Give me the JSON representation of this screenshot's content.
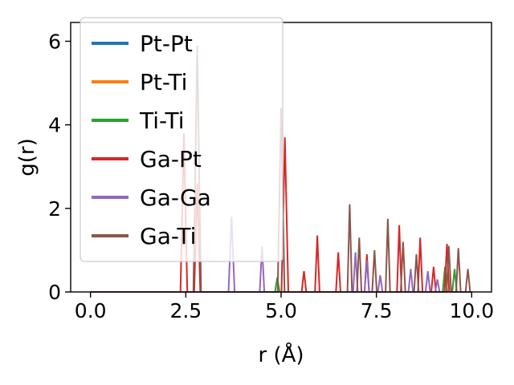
{
  "figure": {
    "background": "#ffffff",
    "axes_edge_color": "#000000",
    "legend_edge_color": "#cccccc",
    "legend_background": "rgba(255,255,255,0.8)"
  },
  "chart_data": {
    "type": "line",
    "title": "",
    "xlabel": "r (Å)",
    "ylabel": "g(r)",
    "xlim": [
      -0.52,
      10.52
    ],
    "ylim": [
      0,
      6.45
    ],
    "x_data_range": [
      0,
      10
    ],
    "xticks": [
      0.0,
      2.5,
      5.0,
      7.5,
      10.0
    ],
    "xtick_labels": [
      "0.0",
      "2.5",
      "5.0",
      "7.5",
      "10.0"
    ],
    "yticks": [
      0,
      2,
      4,
      6
    ],
    "ytick_labels": [
      "0",
      "2",
      "4",
      "6"
    ],
    "grid": false,
    "legend_position": "upper left",
    "series": [
      {
        "name": "Pt-Pt",
        "color": "#1f77b4",
        "peaks": []
      },
      {
        "name": "Pt-Ti",
        "color": "#ff7f0e",
        "peaks": []
      },
      {
        "name": "Ti-Ti",
        "color": "#2ca02c",
        "peaks": [
          [
            4.9,
            0.35
          ],
          [
            9.3,
            0.6
          ],
          [
            9.55,
            0.55
          ]
        ]
      },
      {
        "name": "Ga-Pt",
        "color": "#d62728",
        "peaks": [
          [
            2.45,
            3.8,
            0.09
          ],
          [
            2.8,
            2.6,
            0.08
          ],
          [
            5.1,
            3.7,
            0.09
          ],
          [
            5.6,
            0.5
          ],
          [
            5.95,
            1.35
          ],
          [
            6.5,
            0.95
          ],
          [
            7.25,
            0.9
          ],
          [
            8.1,
            1.6
          ],
          [
            8.65,
            1.3
          ],
          [
            9.0,
            0.6
          ],
          [
            9.35,
            1.15
          ]
        ]
      },
      {
        "name": "Ga-Ga",
        "color": "#9467bd",
        "peaks": [
          [
            3.7,
            1.8,
            0.08
          ],
          [
            4.5,
            1.1
          ],
          [
            6.95,
            0.95
          ],
          [
            7.25,
            0.75
          ],
          [
            7.6,
            0.4
          ],
          [
            8.4,
            0.55
          ],
          [
            8.85,
            0.5
          ],
          [
            9.1,
            0.3
          ]
        ]
      },
      {
        "name": "Ga-Ti",
        "color": "#8c564b",
        "peaks": [
          [
            2.8,
            5.9,
            0.1
          ],
          [
            5.0,
            4.4,
            0.09
          ],
          [
            6.8,
            2.1
          ],
          [
            7.05,
            1.3
          ],
          [
            7.45,
            1.0
          ],
          [
            7.8,
            1.75
          ],
          [
            8.2,
            1.2
          ],
          [
            8.55,
            0.9
          ],
          [
            9.4,
            1.1
          ],
          [
            9.65,
            1.05
          ],
          [
            9.9,
            0.55
          ]
        ]
      }
    ]
  }
}
